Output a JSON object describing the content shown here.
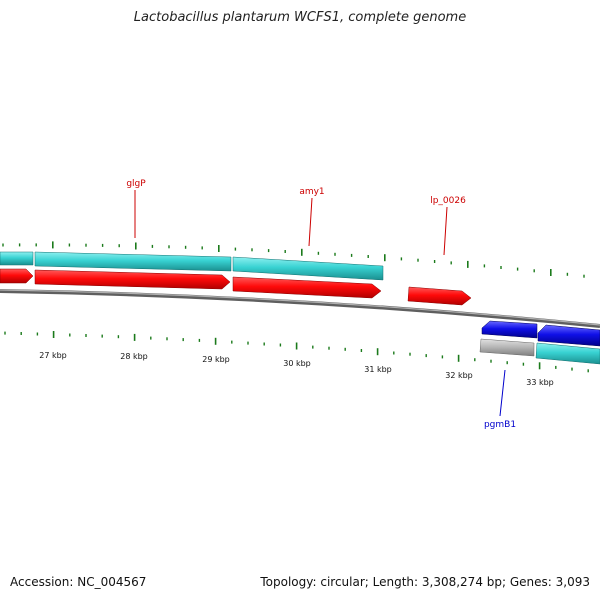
{
  "title": "Lactobacillus plantarum WCFS1, complete genome",
  "footer": {
    "accession": "Accession: NC_004567",
    "summary": "Topology: circular; Length: 3,308,274 bp; Genes: 3,093"
  },
  "colors": {
    "background": "#ffffff",
    "backbone": "#7a7a7a",
    "tick": "#1b7a1b",
    "forward_cds": "#ff0a0a",
    "reverse_cds": "#1010e8",
    "forward_gene": "#38d2d2",
    "pseudo_gene": "#b8b8b8",
    "forward_label": "#cc0000",
    "reverse_label": "#0000cc"
  },
  "kbp_labels": [
    "27 kbp",
    "28 kbp",
    "29 kbp",
    "30 kbp",
    "31 kbp",
    "32 kbp",
    "33 kbp"
  ],
  "gene_labels": [
    {
      "name": "glgP",
      "strand": "forward"
    },
    {
      "name": "amy1",
      "strand": "forward"
    },
    {
      "name": "lp_0026",
      "strand": "forward"
    },
    {
      "name": "pgmB1",
      "strand": "reverse"
    }
  ]
}
